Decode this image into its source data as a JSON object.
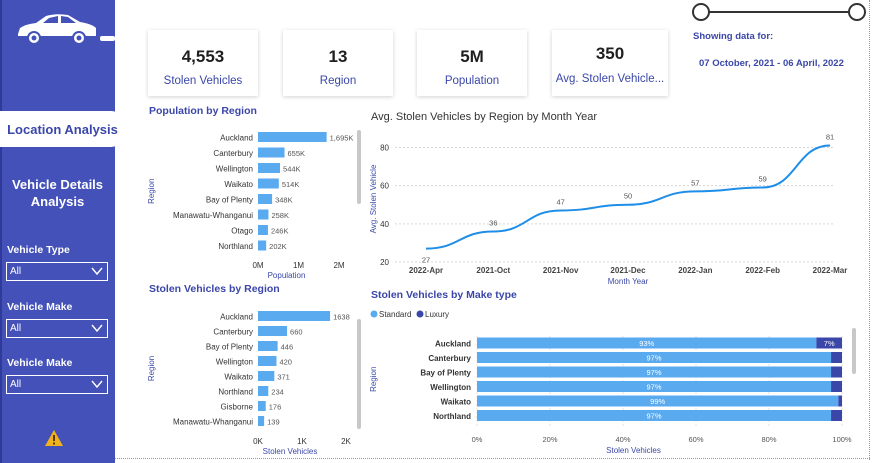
{
  "sidebar": {
    "nav_location": "Location Analysis",
    "nav_vehicle": "Vehicle Details Analysis",
    "filters": [
      {
        "label": "Vehicle Type",
        "value": "All"
      },
      {
        "label": "Vehicle Make",
        "value": "All"
      },
      {
        "label": "Vehicle Make",
        "value": "All"
      }
    ]
  },
  "kpis": [
    {
      "value": "4,553",
      "label": "Stolen Vehicles"
    },
    {
      "value": "13",
      "label": "Region"
    },
    {
      "value": "5M",
      "label": "Population"
    },
    {
      "value": "350",
      "label": "Avg. Stolen Vehicle..."
    }
  ],
  "date_filter": {
    "label": "Showing data for:",
    "range": "07 October, 2021 - 06 April, 2022"
  },
  "colors": {
    "accent": "#3a47a8",
    "sidebar": "#4451b8",
    "bar": "#5aaaf0",
    "line": "#1f8ee8",
    "luxury": "#3a47a8",
    "standard": "#5aaaf0"
  },
  "chart_data": [
    {
      "type": "bar",
      "orientation": "horizontal",
      "title": "Population by Region",
      "ylabel": "Region",
      "xlabel": "Population",
      "categories": [
        "Auckland",
        "Canterbury",
        "Wellington",
        "Waikato",
        "Bay of Plenty",
        "Manawatu-Whanganui",
        "Otago",
        "Northland"
      ],
      "values": [
        1695000,
        655000,
        544000,
        514000,
        348000,
        258000,
        246000,
        202000
      ],
      "data_labels": [
        "1,695K",
        "655K",
        "544K",
        "514K",
        "348K",
        "258K",
        "246K",
        "202K"
      ],
      "xticks": [
        "0M",
        "1M",
        "2M"
      ],
      "xlim": [
        0,
        2000000
      ]
    },
    {
      "type": "line",
      "title": "Avg. Stolen Vehicles by Region by Month Year",
      "ylabel": "Avg. Stolen Vehicle",
      "xlabel": "Month Year",
      "x": [
        "2022-Apr",
        "2021-Oct",
        "2021-Nov",
        "2021-Dec",
        "2022-Jan",
        "2022-Feb",
        "2022-Mar"
      ],
      "values": [
        27,
        36,
        47,
        50,
        57,
        59,
        81
      ],
      "yticks": [
        "20",
        "40",
        "60",
        "80"
      ],
      "ylim": [
        20,
        86
      ],
      "grid": true
    },
    {
      "type": "bar",
      "orientation": "horizontal",
      "title": "Stolen Vehicles by Region",
      "ylabel": "Region",
      "xlabel": "Stolen Vehicles",
      "categories": [
        "Auckland",
        "Canterbury",
        "Bay of Plenty",
        "Wellington",
        "Waikato",
        "Northland",
        "Gisborne",
        "Manawatu-Whanganui"
      ],
      "values": [
        1638,
        660,
        446,
        420,
        371,
        234,
        176,
        139
      ],
      "xticks": [
        "0K",
        "1K",
        "2K"
      ],
      "xlim": [
        0,
        2000
      ]
    },
    {
      "type": "bar",
      "orientation": "horizontal",
      "stacked": "percent",
      "title": "Stolen Vehicles by Make type",
      "ylabel": "Region",
      "xlabel": "Stolen Vehicles",
      "categories": [
        "Auckland",
        "Canterbury",
        "Bay of Plenty",
        "Wellington",
        "Waikato",
        "Northland"
      ],
      "series": [
        {
          "name": "Standard",
          "values": [
            93,
            97,
            97,
            97,
            99,
            97
          ]
        },
        {
          "name": "Luxury",
          "values": [
            7,
            3,
            3,
            3,
            1,
            3
          ]
        }
      ],
      "data_labels_standard": [
        "93%",
        "97%",
        "97%",
        "97%",
        "99%",
        "97%"
      ],
      "data_labels_luxury": [
        "7%",
        "",
        "",
        "",
        "",
        ""
      ],
      "xticks": [
        "0%",
        "20%",
        "40%",
        "60%",
        "80%",
        "100%"
      ],
      "xlim": [
        0,
        100
      ]
    }
  ]
}
